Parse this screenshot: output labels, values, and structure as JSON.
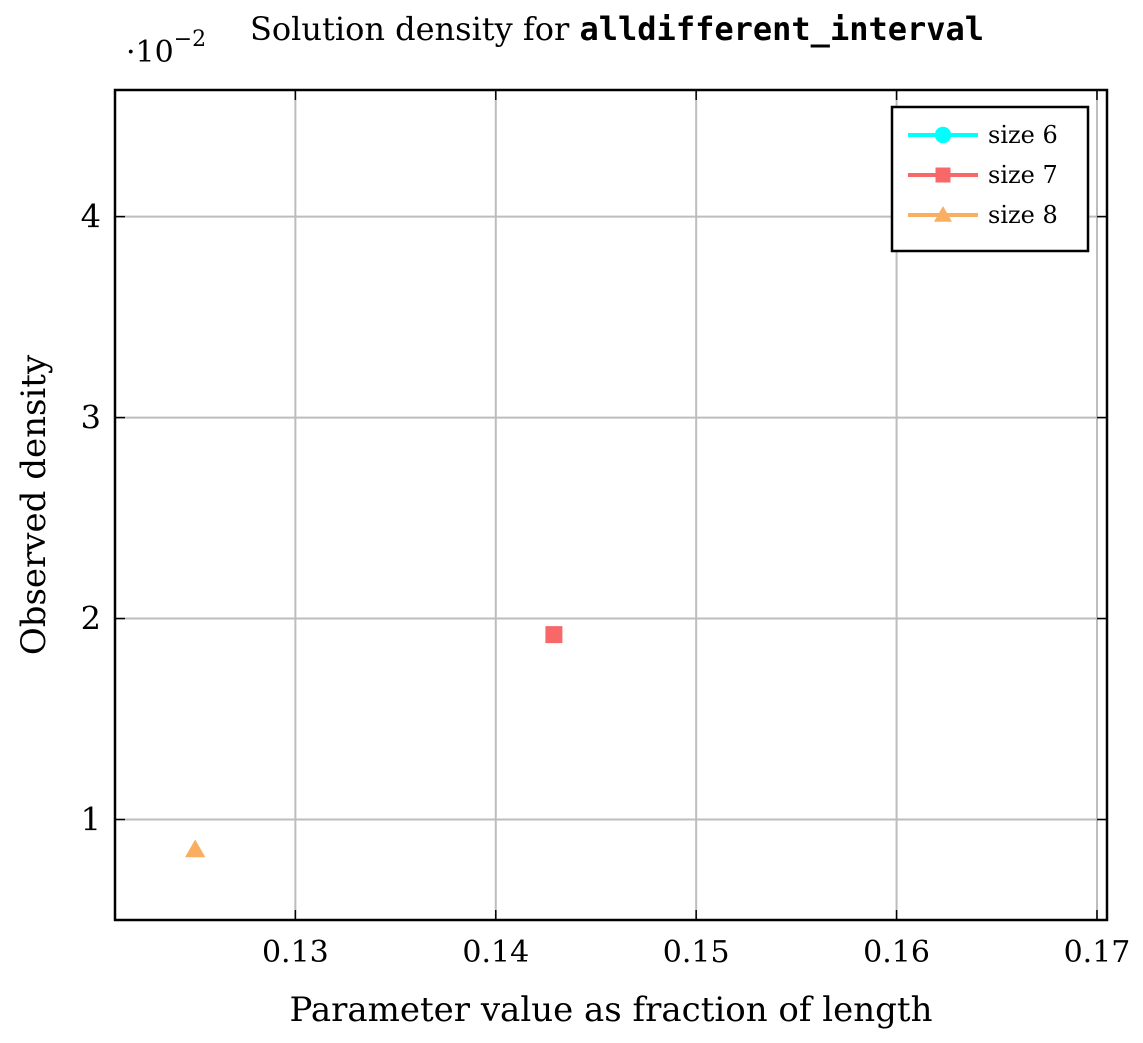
{
  "chart_data": {
    "type": "scatter",
    "title_prefix": "Solution density for ",
    "title_code": "alldifferent_interval",
    "xlabel": "Parameter value as fraction of length",
    "ylabel": "Observed density",
    "y_multiplier": "·10",
    "y_multiplier_exp": "−2",
    "xlim": [
      0.121,
      0.1705
    ],
    "ylim": [
      0.5,
      4.63
    ],
    "x_ticks": [
      0.13,
      0.14,
      0.15,
      0.16,
      0.17
    ],
    "x_tick_labels": [
      "0.13",
      "0.14",
      "0.15",
      "0.16",
      "0.17"
    ],
    "y_ticks": [
      1,
      2,
      3,
      4
    ],
    "y_tick_labels": [
      "1",
      "2",
      "3",
      "4"
    ],
    "grid": true,
    "legend_position": "top-right",
    "series": [
      {
        "name": "size 6",
        "color": "#00FFFF",
        "marker": "circle",
        "points": []
      },
      {
        "name": "size 7",
        "color": "#F86868",
        "marker": "square",
        "points": [
          [
            0.1429,
            1.92
          ]
        ]
      },
      {
        "name": "size 8",
        "color": "#F9AE61",
        "marker": "triangle",
        "points": [
          [
            0.125,
            0.85
          ]
        ]
      }
    ]
  }
}
